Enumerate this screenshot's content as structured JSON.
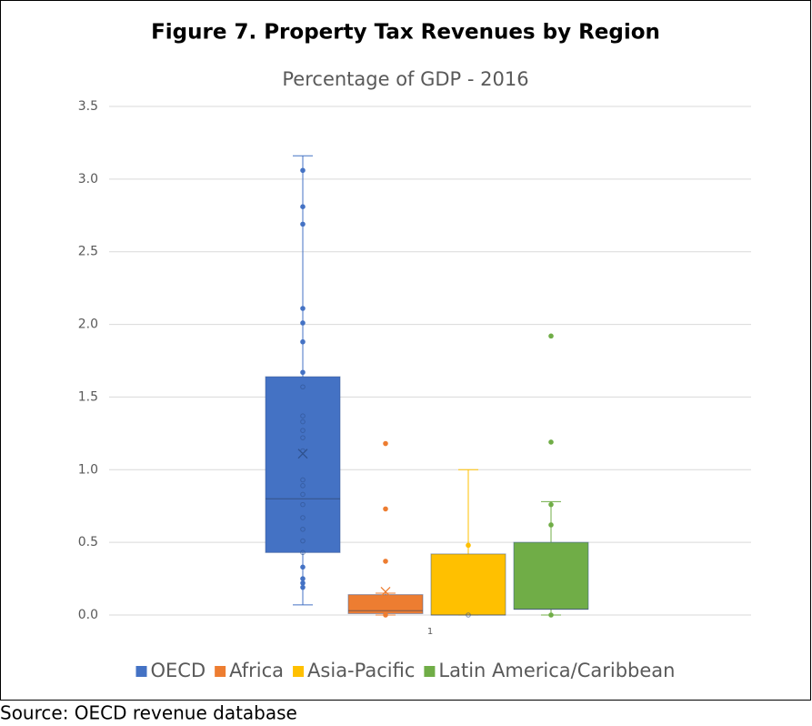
{
  "chart_data": {
    "type": "box",
    "title": "Figure 7. Property Tax Revenues by Region",
    "subtitle": "Percentage of GDP - 2016",
    "source": "Source: OECD revenue database",
    "categories": [
      "1"
    ],
    "ylim": [
      0,
      3.5
    ],
    "yticks": [
      {
        "value": 0,
        "label": "0.0"
      },
      0.5,
      {
        "value": 1,
        "label": "1.0"
      },
      1.5,
      {
        "value": 2,
        "label": "2.0"
      },
      2.5,
      {
        "value": 3,
        "label": "3.0"
      },
      3.5
    ],
    "grid": true,
    "legend": "bottom",
    "series": [
      {
        "name": "OECD",
        "color": "#4472c4",
        "min": 0.07,
        "q1": 0.43,
        "median": 0.8,
        "q3": 1.64,
        "max": 3.16,
        "mean": 1.11,
        "points": [
          3.06,
          2.81,
          2.69,
          2.11,
          2.01,
          1.88,
          1.67,
          1.57,
          1.37,
          1.33,
          1.27,
          1.22,
          1.13,
          0.93,
          0.89,
          0.83,
          0.76,
          0.67,
          0.59,
          0.51,
          0.43,
          0.33,
          0.25,
          0.22,
          0.19
        ]
      },
      {
        "name": "Africa",
        "color": "#ed7d31",
        "min": 0,
        "q1": 0.01,
        "median": 0.03,
        "q3": 0.14,
        "max": 0.15,
        "mean": 0.16,
        "points": [
          1.18,
          0.73,
          0.37,
          0
        ]
      },
      {
        "name": "Asia-Pacific",
        "color": "#ffc000",
        "min": 0,
        "q1": 0,
        "median": 0,
        "q3": 0.42,
        "max": 1.0,
        "points": [
          0.48,
          0
        ]
      },
      {
        "name": "Latin America/Caribbean",
        "color": "#70ad47",
        "min": 0,
        "q1": 0.04,
        "median": 0.04,
        "q3": 0.5,
        "max": 0.78,
        "points": [
          1.92,
          1.19,
          0.76,
          0.62,
          0
        ]
      }
    ]
  }
}
